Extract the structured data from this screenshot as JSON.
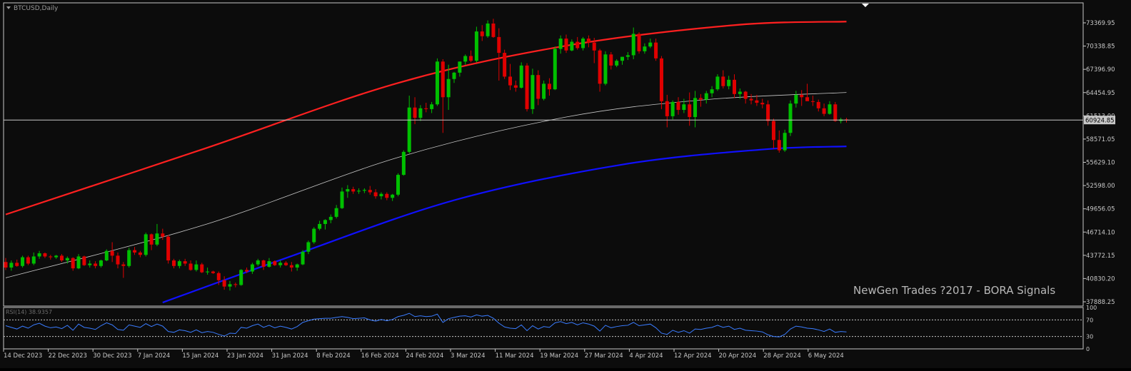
{
  "symbol_label": "BTCUSD,Daily",
  "watermark": "NewGen Trades ?2017 - BORA Signals",
  "current_price_label": "60924.85",
  "colors": {
    "background": "#0c0c0c",
    "frame": "#c8c8c8",
    "axis_text": "#c8c8c8",
    "bull": "#00c000",
    "bear": "#e00000",
    "upper_band": "#ff2020",
    "middle_line": "#c8c8c8",
    "lower_band": "#1010ff",
    "price_line": "#c8c8c8",
    "rsi_line": "#3a7cff",
    "rsi_levels": "#c8c8c8",
    "watermark": "#b8b8b8"
  },
  "rsi_panel": {
    "label": "RSI(14) 38.9357",
    "level_labels": [
      "100",
      "70",
      "30",
      "0"
    ]
  },
  "chart_data": {
    "type": "candlestick",
    "title": "BTCUSD,Daily",
    "y_ticks": [
      "73369.95",
      "70338.85",
      "67396.90",
      "64454.95",
      "61513.00",
      "58571.05",
      "55629.10",
      "52598.00",
      "49656.05",
      "46714.10",
      "43772.15",
      "40830.20",
      "37888.25"
    ],
    "x_ticks": [
      "14 Dec 2023",
      "22 Dec 2023",
      "30 Dec 2023",
      "7 Jan 2024",
      "15 Jan 2024",
      "23 Jan 2024",
      "31 Jan 2024",
      "8 Feb 2024",
      "16 Feb 2024",
      "24 Feb 2024",
      "3 Mar 2024",
      "11 Mar 2024",
      "19 Mar 2024",
      "27 Mar 2024",
      "4 Apr 2024",
      "12 Apr 2024",
      "20 Apr 2024",
      "28 Apr 2024",
      "6 May 2024"
    ],
    "ylim": [
      37888.25,
      73369.95
    ],
    "current_price": 60924.85,
    "candles_ohlc": [
      [
        43000,
        43500,
        42000,
        42300
      ],
      [
        42300,
        43200,
        41900,
        42900
      ],
      [
        42900,
        43300,
        42400,
        42500
      ],
      [
        42500,
        43800,
        42300,
        43600
      ],
      [
        43600,
        43800,
        42600,
        42800
      ],
      [
        42800,
        44200,
        42600,
        43700
      ],
      [
        43700,
        44400,
        43400,
        44100
      ],
      [
        44100,
        44200,
        43500,
        43700
      ],
      [
        43700,
        43900,
        43300,
        43600
      ],
      [
        43600,
        43900,
        43400,
        43800
      ],
      [
        43800,
        44000,
        43000,
        43200
      ],
      [
        43200,
        43700,
        42800,
        43500
      ],
      [
        43500,
        43600,
        41900,
        42200
      ],
      [
        42200,
        44000,
        42100,
        43700
      ],
      [
        43700,
        43800,
        42500,
        42600
      ],
      [
        42600,
        43200,
        42300,
        42800
      ],
      [
        42800,
        43100,
        42200,
        42500
      ],
      [
        42500,
        43300,
        42300,
        43200
      ],
      [
        43200,
        44600,
        43100,
        44400
      ],
      [
        44400,
        45500,
        43000,
        43800
      ],
      [
        43800,
        44200,
        42200,
        42700
      ],
      [
        42700,
        43000,
        41000,
        42500
      ],
      [
        42500,
        44800,
        42300,
        44500
      ],
      [
        44500,
        44900,
        43900,
        44200
      ],
      [
        44200,
        44400,
        43600,
        43900
      ],
      [
        43900,
        46700,
        43700,
        46500
      ],
      [
        46500,
        46600,
        44500,
        45200
      ],
      [
        45200,
        47800,
        45000,
        46600
      ],
      [
        46600,
        47200,
        45800,
        46200
      ],
      [
        46200,
        46400,
        42800,
        43200
      ],
      [
        43200,
        43400,
        42200,
        42500
      ],
      [
        42500,
        43300,
        42200,
        43100
      ],
      [
        43100,
        43400,
        42500,
        42800
      ],
      [
        42800,
        43200,
        41900,
        42000
      ],
      [
        42000,
        43200,
        41800,
        42700
      ],
      [
        42700,
        42900,
        41600,
        41700
      ],
      [
        41700,
        42300,
        41400,
        41800
      ],
      [
        41800,
        41900,
        41500,
        41600
      ],
      [
        41600,
        41800,
        40100,
        40700
      ],
      [
        40700,
        41200,
        39500,
        39900
      ],
      [
        39900,
        40600,
        39400,
        40200
      ],
      [
        40200,
        40400,
        39800,
        40100
      ],
      [
        40100,
        42100,
        40000,
        42000
      ],
      [
        42000,
        42300,
        41600,
        41800
      ],
      [
        41800,
        42900,
        41500,
        42700
      ],
      [
        42700,
        43400,
        42500,
        43200
      ],
      [
        43200,
        43300,
        42000,
        42400
      ],
      [
        42400,
        43500,
        42300,
        43100
      ],
      [
        43100,
        43200,
        42500,
        42600
      ],
      [
        42600,
        43200,
        42300,
        42900
      ],
      [
        42900,
        43100,
        42500,
        42600
      ],
      [
        42600,
        43000,
        41800,
        42300
      ],
      [
        42300,
        42800,
        41900,
        42700
      ],
      [
        42700,
        44500,
        42600,
        44300
      ],
      [
        44300,
        45700,
        44000,
        45500
      ],
      [
        45500,
        47400,
        45300,
        47200
      ],
      [
        47200,
        48200,
        47000,
        47800
      ],
      [
        47800,
        48400,
        47100,
        48300
      ],
      [
        48300,
        49000,
        47900,
        48700
      ],
      [
        48700,
        50200,
        48500,
        49800
      ],
      [
        49800,
        52400,
        49700,
        51900
      ],
      [
        51900,
        52700,
        51100,
        52200
      ],
      [
        52200,
        52500,
        51600,
        51900
      ],
      [
        51900,
        52300,
        51600,
        52000
      ],
      [
        52000,
        52300,
        51700,
        52100
      ],
      [
        52100,
        52600,
        51500,
        51800
      ],
      [
        51800,
        52200,
        51000,
        51300
      ],
      [
        51300,
        51800,
        50900,
        51600
      ],
      [
        51600,
        51800,
        50800,
        51100
      ],
      [
        51100,
        51600,
        50700,
        51500
      ],
      [
        51500,
        54200,
        51300,
        54000
      ],
      [
        54000,
        57100,
        53900,
        56900
      ],
      [
        56900,
        64000,
        56700,
        62500
      ],
      [
        62500,
        63800,
        60400,
        61200
      ],
      [
        61200,
        62800,
        60800,
        62400
      ],
      [
        62400,
        63100,
        61900,
        62300
      ],
      [
        62300,
        63200,
        61800,
        62900
      ],
      [
        62900,
        68700,
        62700,
        68300
      ],
      [
        68300,
        68600,
        59300,
        63800
      ],
      [
        63800,
        67900,
        62200,
        66100
      ],
      [
        66100,
        67000,
        65600,
        66900
      ],
      [
        66900,
        68300,
        66400,
        68300
      ],
      [
        68300,
        69200,
        67900,
        69000
      ],
      [
        69000,
        69700,
        68200,
        68400
      ],
      [
        68400,
        72700,
        68200,
        72100
      ],
      [
        72100,
        72900,
        70900,
        71500
      ],
      [
        71500,
        73500,
        71300,
        73100
      ],
      [
        73100,
        73700,
        71300,
        71400
      ],
      [
        71400,
        72500,
        65900,
        69400
      ],
      [
        69400,
        69800,
        66100,
        66400
      ],
      [
        66400,
        68000,
        64700,
        65300
      ],
      [
        65300,
        65900,
        64500,
        65000
      ],
      [
        65000,
        68200,
        64900,
        67800
      ],
      [
        67800,
        68100,
        62000,
        62300
      ],
      [
        62300,
        67400,
        61700,
        66600
      ],
      [
        66600,
        67200,
        62800,
        63600
      ],
      [
        63600,
        65900,
        63400,
        65500
      ],
      [
        65500,
        66200,
        64000,
        64800
      ],
      [
        64800,
        70200,
        64700,
        69900
      ],
      [
        69900,
        71600,
        69300,
        71200
      ],
      [
        71200,
        71700,
        69400,
        69700
      ],
      [
        69700,
        71100,
        69600,
        70800
      ],
      [
        70800,
        71400,
        69800,
        70000
      ],
      [
        70000,
        71400,
        69700,
        71200
      ],
      [
        71200,
        71600,
        70100,
        70700
      ],
      [
        70700,
        71300,
        68100,
        69700
      ],
      [
        69700,
        69900,
        64500,
        65500
      ],
      [
        65500,
        69600,
        65300,
        69200
      ],
      [
        69200,
        69500,
        67300,
        67800
      ],
      [
        67800,
        68600,
        67600,
        68400
      ],
      [
        68400,
        68900,
        67900,
        68900
      ],
      [
        68900,
        69500,
        68500,
        69100
      ],
      [
        69100,
        72600,
        68600,
        71800
      ],
      [
        71800,
        72000,
        69300,
        69600
      ],
      [
        69600,
        70600,
        69300,
        70200
      ],
      [
        70200,
        71200,
        70000,
        70700
      ],
      [
        70700,
        71200,
        68400,
        68700
      ],
      [
        68700,
        69000,
        62300,
        63300
      ],
      [
        63300,
        64100,
        60000,
        61400
      ],
      [
        61400,
        63400,
        61000,
        63200
      ],
      [
        63200,
        63800,
        61600,
        62200
      ],
      [
        62200,
        63600,
        61800,
        62900
      ],
      [
        62900,
        64400,
        60200,
        61300
      ],
      [
        61300,
        64600,
        60000,
        63700
      ],
      [
        63700,
        64200,
        62600,
        63500
      ],
      [
        63500,
        64600,
        63000,
        64300
      ],
      [
        64300,
        65200,
        63800,
        64800
      ],
      [
        64800,
        66700,
        64600,
        66400
      ],
      [
        66400,
        67200,
        64900,
        65200
      ],
      [
        65200,
        66500,
        64800,
        66000
      ],
      [
        66000,
        66700,
        63700,
        64200
      ],
      [
        64200,
        64900,
        63600,
        64500
      ],
      [
        64500,
        64600,
        63000,
        63600
      ],
      [
        63600,
        64200,
        62900,
        63400
      ],
      [
        63400,
        64100,
        62700,
        63100
      ],
      [
        63100,
        63600,
        62400,
        62900
      ],
      [
        62900,
        63400,
        60200,
        60800
      ],
      [
        60800,
        61100,
        57300,
        58400
      ],
      [
        58400,
        59600,
        56800,
        57100
      ],
      [
        57100,
        59700,
        56900,
        59300
      ],
      [
        59300,
        63400,
        58900,
        63000
      ],
      [
        63000,
        64600,
        62500,
        64100
      ],
      [
        64100,
        64700,
        62700,
        63800
      ],
      [
        63800,
        65500,
        63500,
        63300
      ],
      [
        63300,
        64000,
        62700,
        63200
      ],
      [
        63200,
        63500,
        62000,
        62400
      ],
      [
        62400,
        63000,
        61400,
        61700
      ],
      [
        61700,
        63300,
        61600,
        62900
      ],
      [
        62900,
        63200,
        60700,
        60800
      ],
      [
        60800,
        61200,
        60500,
        61000
      ],
      [
        61000,
        61200,
        60600,
        60924.85
      ]
    ],
    "bands": {
      "upper": [
        [
          0,
          49000
        ],
        [
          35,
          57200
        ],
        [
          70,
          65600
        ],
        [
          100,
          70300
        ],
        [
          130,
          72900
        ],
        [
          150,
          73350
        ]
      ],
      "middle": [
        [
          0,
          41000
        ],
        [
          35,
          47600
        ],
        [
          70,
          56200
        ],
        [
          100,
          61300
        ],
        [
          125,
          63500
        ],
        [
          150,
          64400
        ]
      ],
      "lower": [
        [
          28,
          37888.25
        ],
        [
          50,
          43500
        ],
        [
          80,
          50800
        ],
        [
          110,
          55300
        ],
        [
          135,
          57200
        ],
        [
          150,
          57600
        ]
      ]
    },
    "rsi_values": [
      56,
      52,
      48,
      55,
      50,
      58,
      62,
      55,
      51,
      53,
      49,
      57,
      45,
      60,
      52,
      50,
      47,
      56,
      63,
      58,
      47,
      45,
      58,
      55,
      52,
      61,
      54,
      60,
      55,
      42,
      40,
      46,
      44,
      40,
      46,
      39,
      42,
      40,
      35,
      31,
      38,
      37,
      52,
      50,
      56,
      60,
      52,
      57,
      51,
      55,
      52,
      48,
      54,
      64,
      68,
      72,
      73,
      74,
      74,
      76,
      78,
      76,
      73,
      74,
      75,
      70,
      67,
      71,
      68,
      71,
      78,
      81,
      86,
      78,
      80,
      78,
      79,
      84,
      64,
      73,
      76,
      79,
      80,
      77,
      82,
      79,
      81,
      74,
      62,
      53,
      50,
      49,
      58,
      44,
      56,
      48,
      54,
      52,
      63,
      66,
      61,
      64,
      58,
      63,
      60,
      55,
      43,
      57,
      51,
      54,
      56,
      57,
      64,
      56,
      58,
      60,
      51,
      38,
      35,
      45,
      40,
      44,
      38,
      48,
      47,
      50,
      52,
      57,
      52,
      55,
      47,
      50,
      45,
      44,
      43,
      41,
      34,
      30,
      29,
      35,
      48,
      55,
      53,
      50,
      49,
      46,
      42,
      48,
      40,
      42,
      41
    ]
  }
}
